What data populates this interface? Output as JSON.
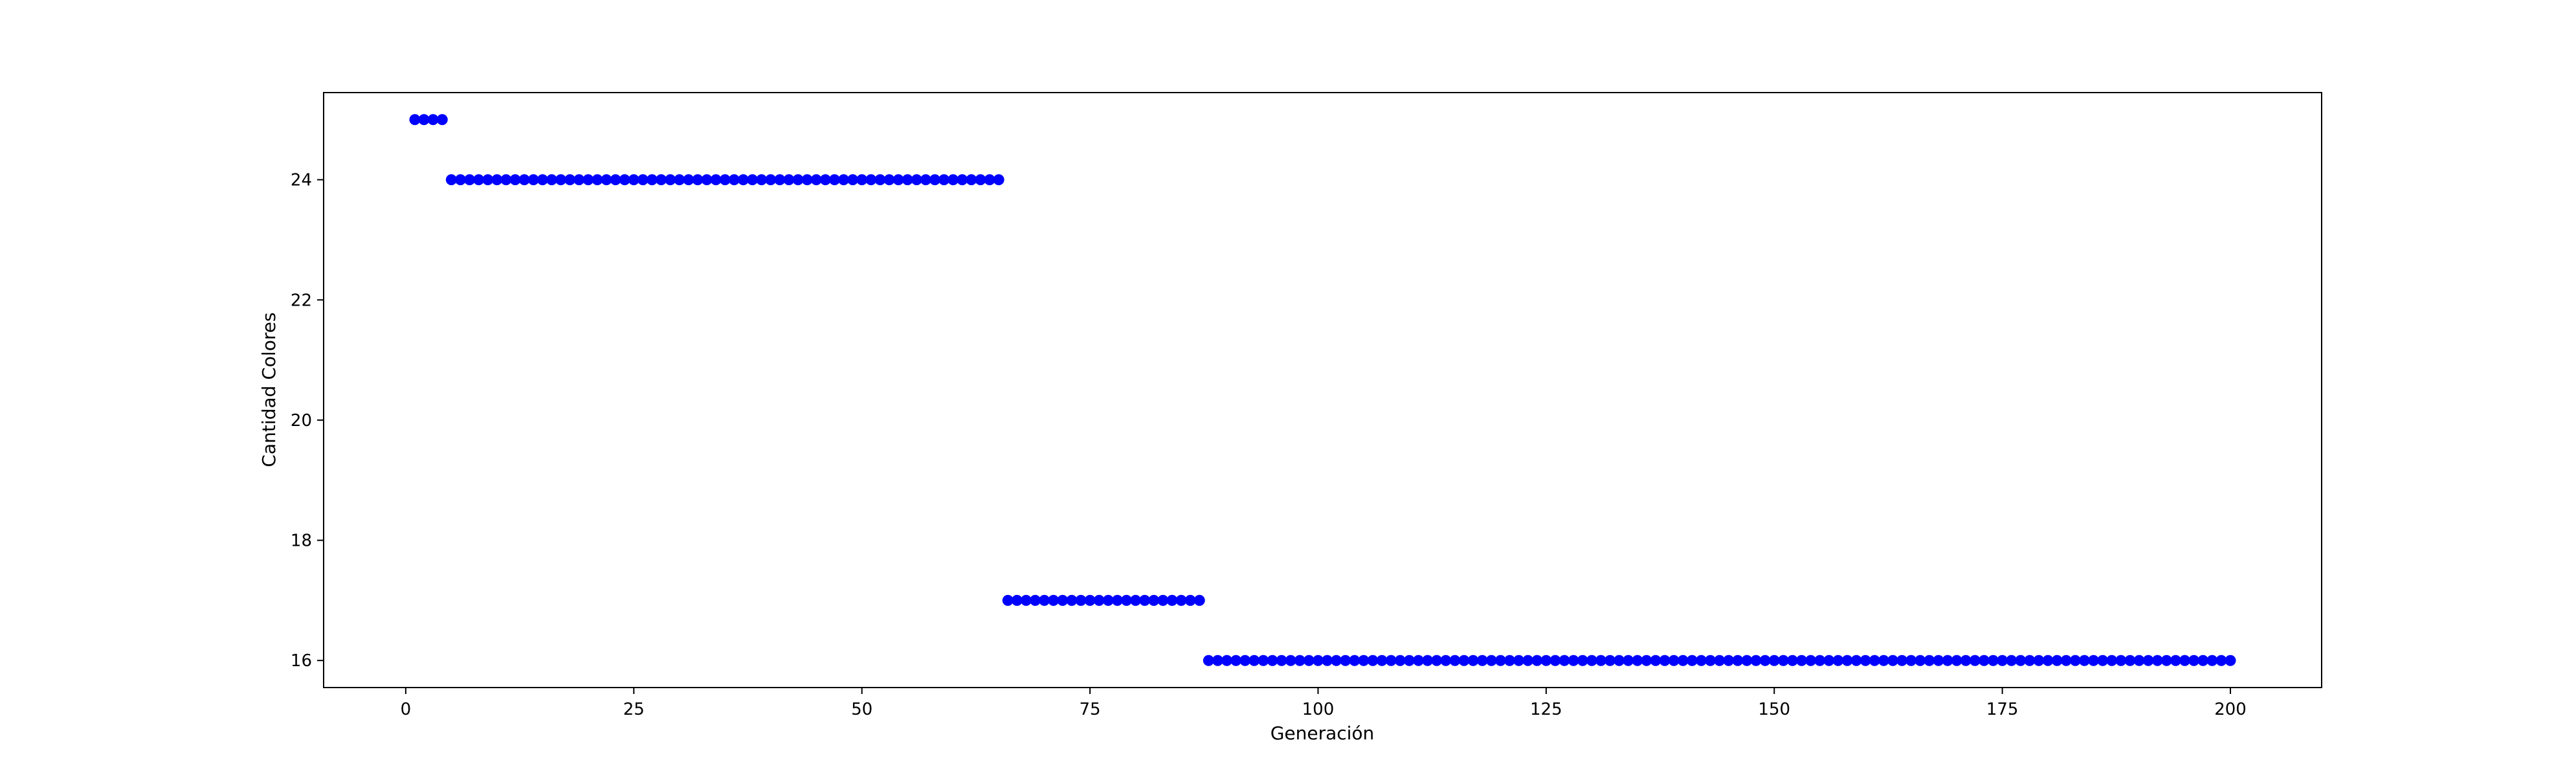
{
  "chart_data": {
    "type": "scatter",
    "title": "",
    "xlabel": "Generación",
    "ylabel": "Cantidad Colores",
    "xlim": [
      -9,
      210
    ],
    "ylim": [
      15.55,
      25.45
    ],
    "xticks": [
      0,
      25,
      50,
      75,
      100,
      125,
      150,
      175,
      200
    ],
    "yticks": [
      16,
      18,
      20,
      22,
      24
    ],
    "grid": false,
    "legend": "none",
    "marker_color": "#0000ff",
    "series": [
      {
        "segments": [
          {
            "x_start": 1,
            "x_end": 4,
            "y": 25
          },
          {
            "x_start": 5,
            "x_end": 65,
            "y": 24
          },
          {
            "x_start": 66,
            "x_end": 87,
            "y": 17
          },
          {
            "x_start": 88,
            "x_end": 200,
            "y": 16
          }
        ]
      }
    ]
  }
}
